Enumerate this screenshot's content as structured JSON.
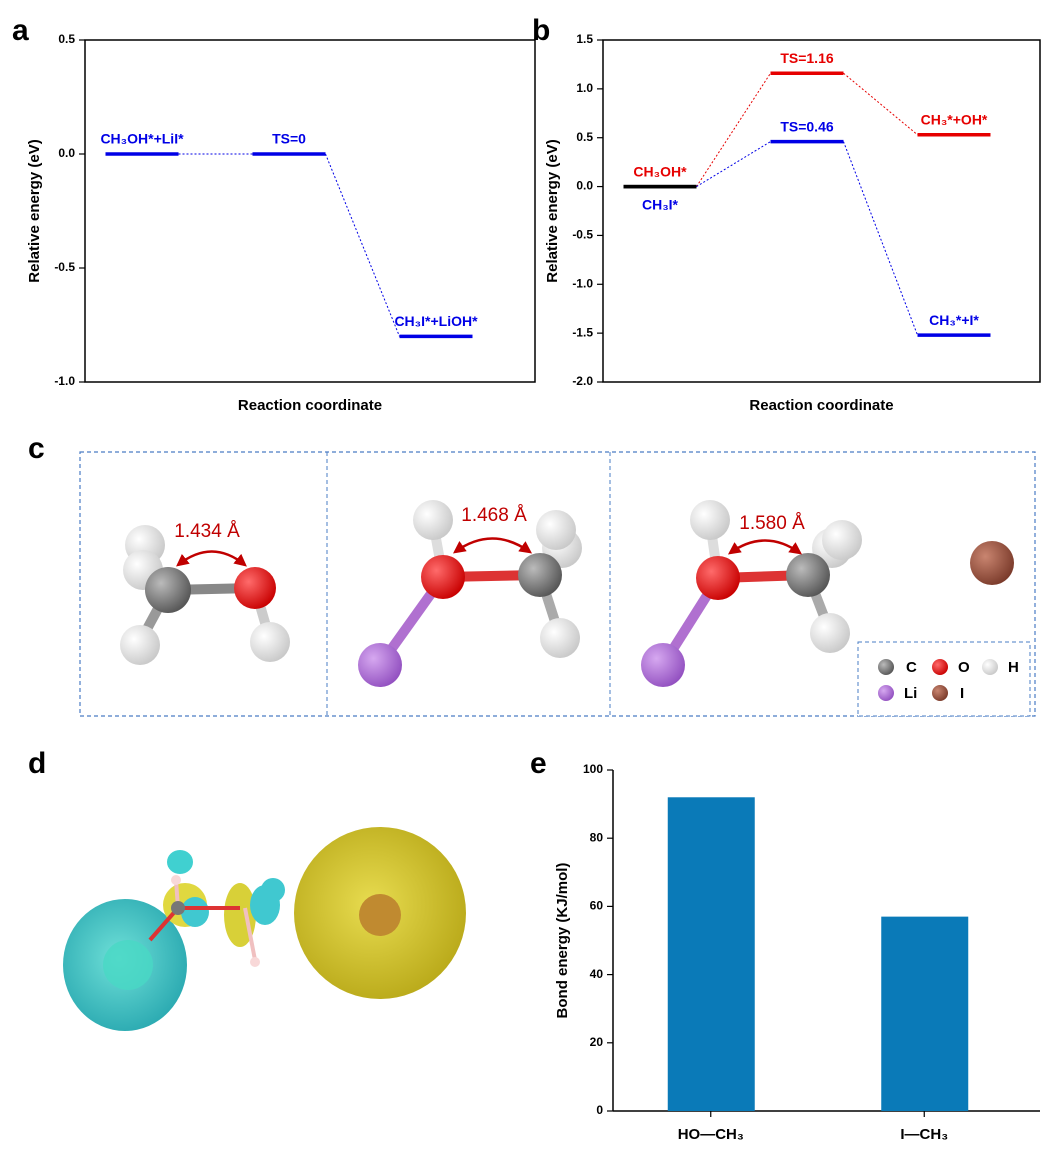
{
  "panel_labels": [
    "a",
    "b",
    "c",
    "d",
    "e"
  ],
  "panel_c": {
    "bond_lengths": [
      "1.434 Å",
      "1.468 Å",
      "1.580 Å"
    ],
    "legend": [
      "C",
      "O",
      "H",
      "Li",
      "I"
    ]
  },
  "chart_data": [
    {
      "type": "energy_profile",
      "xlabel": "Reaction coordinate",
      "ylabel": "Relative energy (eV)",
      "ylim": [
        -1.0,
        0.5
      ],
      "yticks": [
        0.5,
        {
          "value": 0,
          "label": "0.0"
        },
        -0.5,
        {
          "value": -1.0,
          "label": "-1.0"
        }
      ],
      "series": [
        {
          "color": "#0000e6",
          "labels": [
            "CH₃OH*+LiI*",
            "TS=0",
            "CH₃I*+LiOH*"
          ],
          "values": [
            0,
            0,
            -0.8
          ]
        }
      ]
    },
    {
      "type": "energy_profile",
      "xlabel": "Reaction coordinate",
      "ylabel": "Relative energy (eV)",
      "ylim": [
        -2.0,
        1.5
      ],
      "shared_start_color": "#000000",
      "yticks": [
        1.5,
        {
          "value": 1.0,
          "label": "1.0"
        },
        0.5,
        {
          "value": 0,
          "label": "0.0"
        },
        -0.5,
        {
          "value": -1.0,
          "label": "-1.0"
        },
        -1.5,
        {
          "value": -2.0,
          "label": "-2.0"
        }
      ],
      "series": [
        {
          "color": "#e60000",
          "labels": [
            "CH₃OH*",
            "TS=1.16",
            "CH₃*+OH*"
          ],
          "values": [
            0,
            1.16,
            0.53
          ]
        },
        {
          "color": "#0000e6",
          "labels": [
            "CH₃I*",
            "TS=0.46",
            "CH₃*+I*"
          ],
          "values": [
            0,
            0.46,
            -1.52
          ]
        }
      ]
    },
    {
      "type": "bar",
      "ylabel": "Bond energy (KJ/mol)",
      "categories": [
        "HO—CH₃",
        "I—CH₃"
      ],
      "values": [
        92,
        57
      ],
      "color": "#0a7ab8",
      "ylim": [
        0,
        100
      ],
      "yticks": [
        0,
        20,
        40,
        60,
        80,
        100
      ]
    }
  ]
}
